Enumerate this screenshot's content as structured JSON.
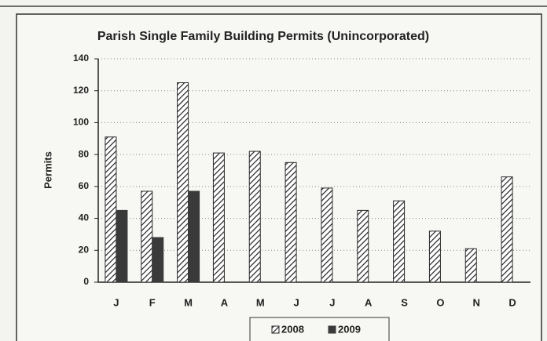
{
  "chart_data": {
    "type": "bar",
    "title": "Parish Single Family Building Permits (Unincorporated)",
    "y_label": "Permits",
    "categories": [
      "J",
      "F",
      "M",
      "A",
      "M",
      "J",
      "J",
      "A",
      "S",
      "O",
      "N",
      "D"
    ],
    "series": [
      {
        "name": "2008",
        "color": "#2a2a2a",
        "pattern": "hatch",
        "values": [
          91,
          57,
          125,
          81,
          82,
          75,
          59,
          45,
          51,
          32,
          21,
          66
        ]
      },
      {
        "name": "2009",
        "color": "#3a3a3a",
        "values": [
          45,
          28,
          57,
          null,
          null,
          null,
          null,
          null,
          null,
          null,
          null,
          null
        ]
      }
    ],
    "ylim": [
      0,
      140
    ],
    "yticks": [
      0,
      20,
      40,
      60,
      80,
      100,
      120,
      140
    ],
    "grid": true,
    "legend": "bottom"
  }
}
